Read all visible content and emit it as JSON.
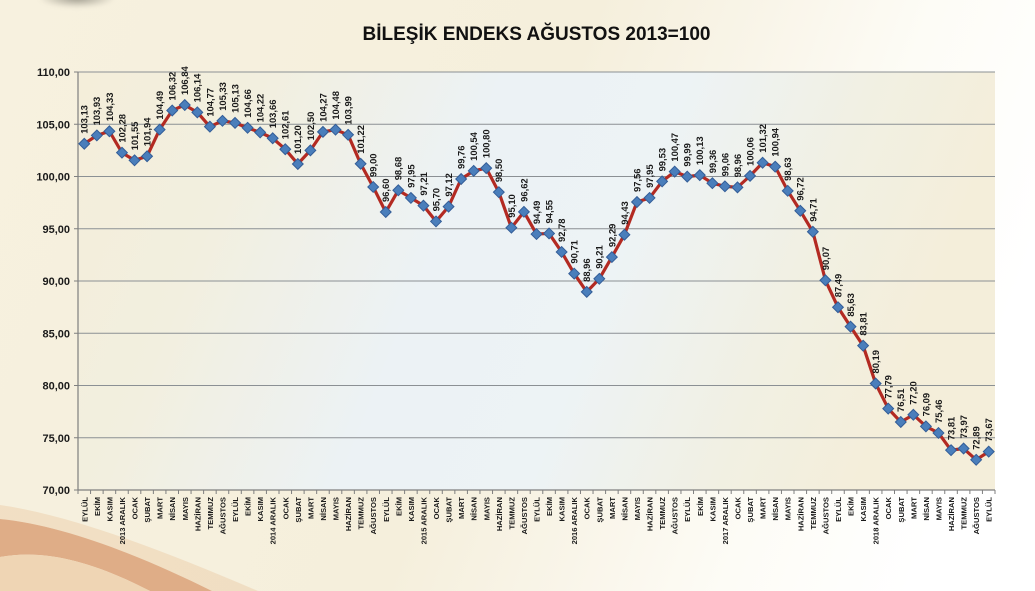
{
  "chart_data": {
    "type": "line",
    "title": "BİLEŞİK ENDEKS AĞUSTOS 2013=100",
    "xlabel": "",
    "ylabel": "",
    "ylim": [
      70,
      110
    ],
    "grid": true,
    "legend_position": "none",
    "yticks": [
      110,
      105,
      100,
      95,
      90,
      85,
      80,
      75,
      70
    ],
    "ytick_labels": [
      "110,00",
      "105,00",
      "100,00",
      "95,00",
      "90,00",
      "85,00",
      "80,00",
      "75,00",
      "70,00"
    ],
    "categories": [
      "EYLÜL",
      "EKİM",
      "KASIM",
      "2013 ARALIK",
      "OCAK",
      "ŞUBAT",
      "MART",
      "NİSAN",
      "MAYIS",
      "HAZİRAN",
      "TEMMUZ",
      "AĞUSTOS",
      "EYLÜL",
      "EKİM",
      "KASIM",
      "2014 ARALIK",
      "OCAK",
      "ŞUBAT",
      "MART",
      "NİSAN",
      "MAYIS",
      "HAZİRAN",
      "TEMMUZ",
      "AĞUSTOS",
      "EYLÜL",
      "EKİM",
      "KASIM",
      "2015 ARALIK",
      "OCAK",
      "ŞUBAT",
      "MART",
      "NİSAN",
      "MAYIS",
      "HAZİRAN",
      "TEMMUZ",
      "AĞUSTOS",
      "EYLÜL",
      "EKİM",
      "KASIM",
      "2016 ARALIK",
      "OCAK",
      "ŞUBAT",
      "MART",
      "NİSAN",
      "MAYIS",
      "HAZİRAN",
      "TEMMUZ",
      "AĞUSTOS",
      "EYLÜL",
      "EKİM",
      "KASIM",
      "2017 ARALIK",
      "OCAK",
      "ŞUBAT",
      "MART",
      "NİSAN",
      "MAYIS",
      "HAZİRAN",
      "TEMMUZ",
      "AĞUSTOS",
      "EYLÜL",
      "EKİM",
      "KASIM",
      "2018 ARALIK",
      "OCAK",
      "ŞUBAT",
      "MART",
      "NİSAN",
      "MAYIS",
      "HAZİRAN",
      "TEMMUZ",
      "AĞUSTOS",
      "EYLÜL"
    ],
    "values": [
      103.13,
      103.93,
      104.33,
      102.28,
      101.55,
      101.94,
      104.49,
      106.32,
      106.84,
      106.14,
      104.77,
      105.33,
      105.13,
      104.66,
      104.22,
      103.66,
      102.61,
      101.2,
      102.5,
      104.27,
      104.48,
      103.99,
      101.22,
      99.0,
      96.6,
      98.68,
      97.95,
      97.21,
      95.7,
      97.12,
      99.76,
      100.54,
      100.8,
      98.5,
      95.1,
      96.62,
      94.49,
      94.55,
      92.78,
      90.71,
      88.96,
      90.21,
      92.29,
      94.43,
      97.56,
      97.95,
      99.53,
      100.47,
      99.99,
      100.13,
      99.36,
      99.06,
      98.96,
      100.06,
      101.32,
      100.94,
      98.63,
      96.72,
      94.71,
      90.07,
      87.49,
      85.63,
      83.81,
      80.19,
      77.79,
      76.51,
      77.2,
      76.09,
      75.46,
      73.81,
      73.97,
      72.89,
      73.67
    ],
    "point_labels": [
      "103,13",
      "103,93",
      "104,33",
      "102,28",
      "101,55",
      "101,94",
      "104,49",
      "106,32",
      "106,84",
      "106,14",
      "104,77",
      "105,33",
      "105,13",
      "104,66",
      "104,22",
      "103,66",
      "102,61",
      "101,20",
      "102,50",
      "104,27",
      "104,48",
      "103,99",
      "101,22",
      "99,00",
      "96,60",
      "98,68",
      "97,95",
      "97,21",
      "95,70",
      "97,12",
      "99,76",
      "100,54",
      "100,80",
      "98,50",
      "95,10",
      "96,62",
      "94,49",
      "94,55",
      "92,78",
      "90,71",
      "88,96",
      "90,21",
      "92,29",
      "94,43",
      "97,56",
      "97,95",
      "99,53",
      "100,47",
      "99,99",
      "100,13",
      "99,36",
      "99,06",
      "98,96",
      "100,06",
      "101,32",
      "100,94",
      "98,63",
      "96,72",
      "94,71",
      "90,07",
      "87,49",
      "85,63",
      "83,81",
      "80,19",
      "77,79",
      "76,51",
      "77,20",
      "76,09",
      "75,46",
      "73,81",
      "73,97",
      "72,89",
      "73,67"
    ]
  },
  "colors": {
    "line": "#b32a22",
    "marker_fill": "#4a7ebb",
    "marker_stroke": "#335d97",
    "grid": "#8b9094",
    "axis": "#7f7f7f",
    "label": "#1a1a1a",
    "title": "#111111",
    "wall_cream": "#f4eeda",
    "wall_blue": "#ecf2f5",
    "decor_band": "#dfad87",
    "decor_corner": "#efd5b4",
    "decor_halo": "#ecc9a4"
  }
}
